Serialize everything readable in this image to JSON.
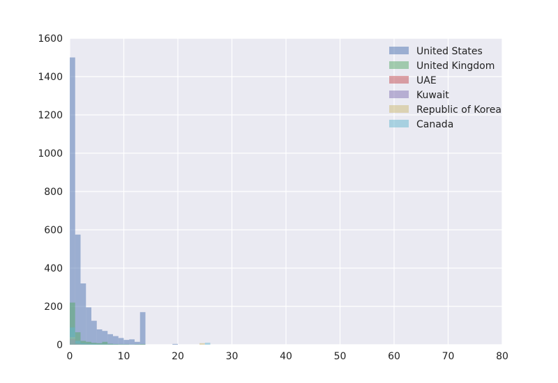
{
  "chart_data": {
    "type": "bar",
    "style": "overlaid-histogram",
    "bin_width": 1,
    "bin_start": 0,
    "xlim": [
      0,
      80
    ],
    "ylim": [
      0,
      1600
    ],
    "x_ticks": [
      0,
      10,
      20,
      30,
      40,
      50,
      60,
      70,
      80
    ],
    "y_ticks": [
      0,
      200,
      400,
      600,
      800,
      1000,
      1200,
      1400,
      1600
    ],
    "grid": true,
    "background": "#EAEAF2",
    "legend_position": "top-right",
    "series": [
      {
        "name": "United States",
        "color": "#4C72B0",
        "values": [
          1500,
          575,
          320,
          195,
          125,
          80,
          72,
          55,
          45,
          35,
          25,
          28,
          15,
          170,
          0,
          0,
          0,
          0,
          0,
          4,
          0,
          0,
          0,
          0,
          0,
          0
        ]
      },
      {
        "name": "United Kingdom",
        "color": "#55A868",
        "values": [
          220,
          65,
          20,
          15,
          10,
          8,
          15,
          5,
          3,
          2,
          2,
          1,
          2,
          3,
          0,
          0,
          0,
          0,
          0,
          0,
          0,
          0,
          0,
          0,
          0,
          0
        ]
      },
      {
        "name": "UAE",
        "color": "#C44E52",
        "values": [
          30,
          5,
          2,
          1,
          0,
          0,
          0,
          0,
          0,
          0,
          0,
          0,
          0,
          0,
          0,
          0,
          0,
          0,
          0,
          0,
          0,
          0,
          0,
          0,
          0,
          0
        ]
      },
      {
        "name": "Kuwait",
        "color": "#8172B2",
        "values": [
          25,
          3,
          1,
          0,
          0,
          0,
          0,
          0,
          0,
          0,
          0,
          0,
          0,
          0,
          0,
          0,
          0,
          0,
          0,
          0,
          0,
          0,
          0,
          0,
          0,
          0
        ]
      },
      {
        "name": "Republic of Korea",
        "color": "#CCB974",
        "values": [
          40,
          5,
          2,
          1,
          0,
          0,
          0,
          0,
          0,
          0,
          0,
          0,
          0,
          0,
          0,
          0,
          0,
          0,
          0,
          0,
          0,
          0,
          0,
          0,
          8,
          0
        ]
      },
      {
        "name": "Canada",
        "color": "#64B5CD",
        "values": [
          90,
          20,
          8,
          5,
          3,
          2,
          2,
          1,
          1,
          0,
          0,
          0,
          0,
          0,
          0,
          0,
          0,
          0,
          0,
          0,
          0,
          0,
          0,
          0,
          0,
          10
        ]
      }
    ]
  }
}
